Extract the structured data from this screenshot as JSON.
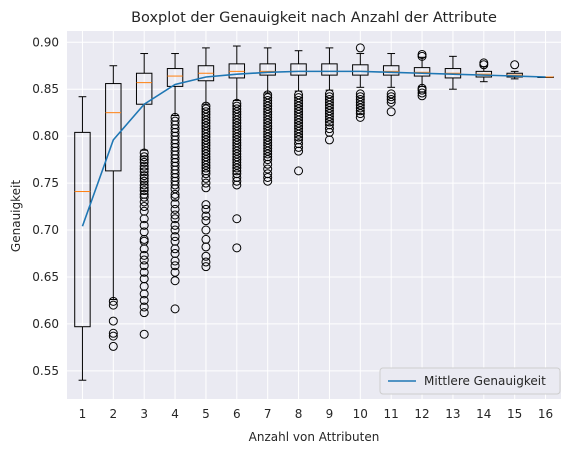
{
  "chart_data": {
    "type": "boxplot",
    "title": "Boxplot der Genauigkeit nach Anzahl der Attribute",
    "xlabel": "Anzahl von Attributen",
    "ylabel": "Genauigkeit",
    "categories": [
      "1",
      "2",
      "3",
      "4",
      "5",
      "6",
      "7",
      "8",
      "9",
      "10",
      "11",
      "12",
      "13",
      "14",
      "15",
      "16"
    ],
    "yticks": [
      "0.55",
      "0.60",
      "0.65",
      "0.70",
      "0.75",
      "0.80",
      "0.85",
      "0.90"
    ],
    "ylim": [
      0.52,
      0.912
    ],
    "grid": true,
    "legend_position": "lower-right",
    "colors": {
      "background": "#eaeaf2",
      "grid": "#ffffff",
      "box": "#000000",
      "median": "#ff7f0e",
      "mean_line": "#1f77b4"
    },
    "boxes": [
      {
        "category": "1",
        "whislo": 0.54,
        "q1": 0.597,
        "med": 0.741,
        "q3": 0.804,
        "whishi": 0.842,
        "fliers": []
      },
      {
        "category": "2",
        "whislo": 0.626,
        "q1": 0.763,
        "med": 0.825,
        "q3": 0.856,
        "whishi": 0.875,
        "fliers": [
          0.624,
          0.62,
          0.603,
          0.59,
          0.587,
          0.576
        ]
      },
      {
        "category": "3",
        "whislo": 0.785,
        "q1": 0.834,
        "med": 0.857,
        "q3": 0.867,
        "whishi": 0.888,
        "fliers": [
          0.782,
          0.778,
          0.775,
          0.772,
          0.768,
          0.765,
          0.762,
          0.758,
          0.755,
          0.752,
          0.748,
          0.745,
          0.742,
          0.738,
          0.735,
          0.73,
          0.725,
          0.72,
          0.712,
          0.705,
          0.698,
          0.69,
          0.688,
          0.68,
          0.673,
          0.668,
          0.662,
          0.655,
          0.648,
          0.64,
          0.632,
          0.625,
          0.618,
          0.612,
          0.589
        ]
      },
      {
        "category": "4",
        "whislo": 0.822,
        "q1": 0.853,
        "med": 0.864,
        "q3": 0.872,
        "whishi": 0.888,
        "fliers": [
          0.82,
          0.816,
          0.812,
          0.808,
          0.804,
          0.8,
          0.796,
          0.792,
          0.788,
          0.784,
          0.78,
          0.776,
          0.772,
          0.768,
          0.764,
          0.76,
          0.756,
          0.752,
          0.748,
          0.744,
          0.738,
          0.735,
          0.728,
          0.722,
          0.716,
          0.712,
          0.705,
          0.7,
          0.693,
          0.688,
          0.68,
          0.675,
          0.667,
          0.662,
          0.655,
          0.646,
          0.616
        ]
      },
      {
        "category": "5",
        "whislo": 0.834,
        "q1": 0.859,
        "med": 0.867,
        "q3": 0.875,
        "whishi": 0.894,
        "fliers": [
          0.832,
          0.829,
          0.826,
          0.823,
          0.82,
          0.817,
          0.814,
          0.811,
          0.808,
          0.805,
          0.802,
          0.799,
          0.796,
          0.793,
          0.79,
          0.787,
          0.784,
          0.781,
          0.778,
          0.775,
          0.772,
          0.769,
          0.766,
          0.763,
          0.76,
          0.755,
          0.75,
          0.745,
          0.727,
          0.722,
          0.715,
          0.71,
          0.7,
          0.69,
          0.682,
          0.672,
          0.666,
          0.661
        ]
      },
      {
        "category": "6",
        "whislo": 0.838,
        "q1": 0.862,
        "med": 0.869,
        "q3": 0.877,
        "whishi": 0.896,
        "fliers": [
          0.835,
          0.832,
          0.829,
          0.826,
          0.823,
          0.82,
          0.817,
          0.814,
          0.811,
          0.808,
          0.805,
          0.802,
          0.799,
          0.796,
          0.793,
          0.79,
          0.787,
          0.784,
          0.781,
          0.778,
          0.775,
          0.772,
          0.769,
          0.766,
          0.763,
          0.76,
          0.756,
          0.752,
          0.748,
          0.712,
          0.681
        ]
      },
      {
        "category": "7",
        "whislo": 0.846,
        "q1": 0.865,
        "med": 0.869,
        "q3": 0.877,
        "whishi": 0.894,
        "fliers": [
          0.844,
          0.841,
          0.838,
          0.835,
          0.832,
          0.829,
          0.826,
          0.823,
          0.82,
          0.817,
          0.814,
          0.811,
          0.808,
          0.805,
          0.802,
          0.799,
          0.796,
          0.793,
          0.79,
          0.787,
          0.784,
          0.781,
          0.778,
          0.775,
          0.77,
          0.765,
          0.76,
          0.756,
          0.752
        ]
      },
      {
        "category": "8",
        "whislo": 0.848,
        "q1": 0.865,
        "med": 0.869,
        "q3": 0.877,
        "whishi": 0.891,
        "fliers": [
          0.844,
          0.841,
          0.838,
          0.835,
          0.832,
          0.829,
          0.826,
          0.823,
          0.82,
          0.817,
          0.814,
          0.811,
          0.808,
          0.805,
          0.802,
          0.799,
          0.796,
          0.792,
          0.788,
          0.784,
          0.763
        ]
      },
      {
        "category": "9",
        "whislo": 0.849,
        "q1": 0.865,
        "med": 0.869,
        "q3": 0.877,
        "whishi": 0.894,
        "fliers": [
          0.845,
          0.842,
          0.839,
          0.836,
          0.833,
          0.83,
          0.827,
          0.824,
          0.821,
          0.818,
          0.815,
          0.812,
          0.808,
          0.804,
          0.796
        ]
      },
      {
        "category": "10",
        "whislo": 0.852,
        "q1": 0.865,
        "med": 0.869,
        "q3": 0.876,
        "whishi": 0.888,
        "fliers": [
          0.894,
          0.845,
          0.842,
          0.839,
          0.836,
          0.833,
          0.83,
          0.827,
          0.824,
          0.82
        ]
      },
      {
        "category": "11",
        "whislo": 0.852,
        "q1": 0.865,
        "med": 0.869,
        "q3": 0.875,
        "whishi": 0.888,
        "fliers": [
          0.845,
          0.842,
          0.839,
          0.836,
          0.826
        ]
      },
      {
        "category": "12",
        "whislo": 0.853,
        "q1": 0.864,
        "med": 0.868,
        "q3": 0.873,
        "whishi": 0.884,
        "fliers": [
          0.887,
          0.885,
          0.851,
          0.849,
          0.846,
          0.843
        ]
      },
      {
        "category": "13",
        "whislo": 0.85,
        "q1": 0.862,
        "med": 0.867,
        "q3": 0.872,
        "whishi": 0.885,
        "fliers": []
      },
      {
        "category": "14",
        "whislo": 0.858,
        "q1": 0.863,
        "med": 0.866,
        "q3": 0.869,
        "whishi": 0.874,
        "fliers": [
          0.878,
          0.876
        ]
      },
      {
        "category": "15",
        "whislo": 0.861,
        "q1": 0.863,
        "med": 0.865,
        "q3": 0.867,
        "whishi": 0.869,
        "fliers": [
          0.876
        ]
      },
      {
        "category": "16",
        "whislo": 0.863,
        "q1": 0.863,
        "med": 0.863,
        "q3": 0.863,
        "whishi": 0.863,
        "fliers": []
      }
    ],
    "series": [
      {
        "name": "Mittlere Genauigkeit",
        "type": "line",
        "values": [
          0.704,
          0.796,
          0.834,
          0.855,
          0.863,
          0.866,
          0.868,
          0.869,
          0.869,
          0.869,
          0.868,
          0.867,
          0.866,
          0.865,
          0.864,
          0.863
        ]
      }
    ]
  }
}
